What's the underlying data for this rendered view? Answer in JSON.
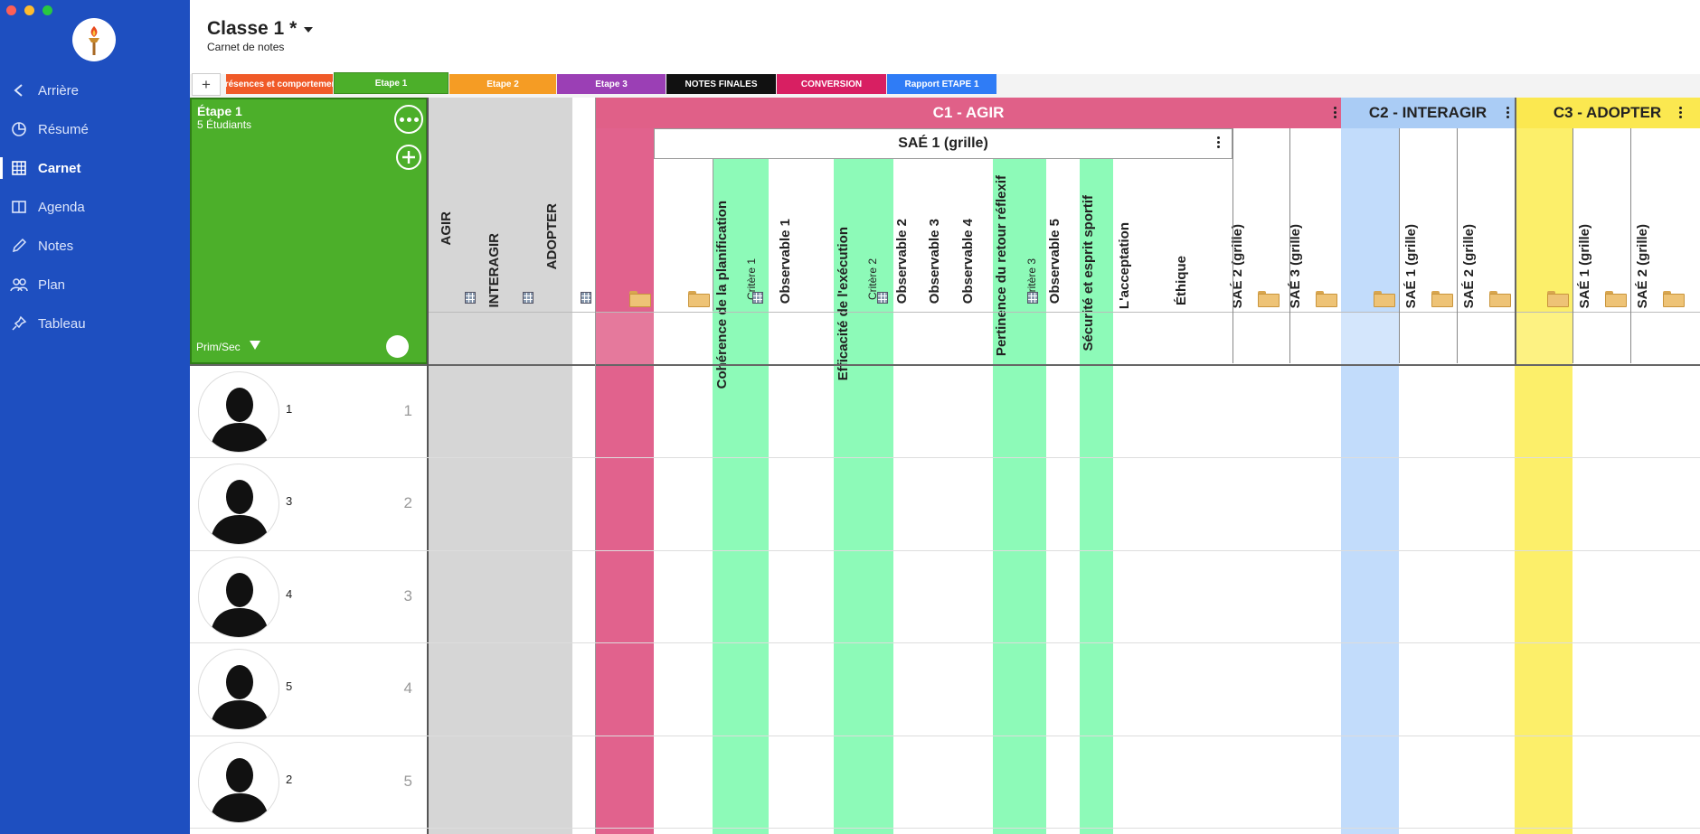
{
  "sidebar": {
    "items": [
      {
        "label": "Arrière",
        "icon": "chevron-left-icon"
      },
      {
        "label": "Résumé",
        "icon": "pie-chart-icon"
      },
      {
        "label": "Carnet",
        "icon": "grid-icon"
      },
      {
        "label": "Agenda",
        "icon": "book-icon"
      },
      {
        "label": "Notes",
        "icon": "pencil-icon"
      },
      {
        "label": "Plan",
        "icon": "people-icon"
      },
      {
        "label": "Tableau",
        "icon": "pin-icon"
      }
    ],
    "active": "Carnet"
  },
  "header": {
    "title": "Classe 1 *",
    "subtitle": "Carnet de notes",
    "add_label": "+"
  },
  "tabs": [
    {
      "label": "Présences et comportement",
      "color": "#f05a28"
    },
    {
      "label": "Etape 1",
      "color": "#4caf2a"
    },
    {
      "label": "Etape 2",
      "color": "#f59c24"
    },
    {
      "label": "Etape 3",
      "color": "#9b3fb5"
    },
    {
      "label": "NOTES FINALES",
      "color": "#111111"
    },
    {
      "label": "CONVERSION",
      "color": "#d81f62"
    },
    {
      "label": "Rapport ETAPE 1",
      "color": "#2f7cf6"
    }
  ],
  "stage": {
    "title": "Étape 1",
    "count": "5 Étudiants",
    "filter": "Prim/Sec",
    "color": "#4caf2a"
  },
  "summary_columns": [
    "AGIR",
    "INTERAGIR",
    "ADOPTER"
  ],
  "competencies": [
    {
      "label": "C1 - AGIR",
      "color": "#e06088"
    },
    {
      "label": "C2 - INTERAGIR",
      "color": "#aaccf5"
    },
    {
      "label": "C3 - ADOPTER",
      "color": "#fbe850"
    }
  ],
  "sae1": {
    "label": "SAÉ 1 (grille)",
    "columns": [
      {
        "label": "Cohérence de la planification",
        "sub": "Critère 1"
      },
      {
        "label": "Observable 1"
      },
      {
        "label": "Efficacité de l'exécution",
        "sub": "Critère 2"
      },
      {
        "label": "Observable 2"
      },
      {
        "label": "Observable 3"
      },
      {
        "label": "Observable 4"
      },
      {
        "label": "Pertinence du retour réflexif",
        "sub": "Critère 3"
      },
      {
        "label": "Observable 5"
      },
      {
        "label": "Sécurité et esprit sportif"
      },
      {
        "label": "L'acceptation"
      },
      {
        "label": "Éthique"
      }
    ]
  },
  "c1_extra": [
    "SAÉ 2 (grille)",
    "SAÉ 3 (grille)"
  ],
  "c2_cols": [
    "SAÉ 1 (grille)",
    "SAÉ 2 (grille)"
  ],
  "c3_cols": [
    "SAÉ 1 (grille)",
    "SAÉ 2 (grille)"
  ],
  "students": [
    {
      "name": "1",
      "num": "1"
    },
    {
      "name": "3",
      "num": "2"
    },
    {
      "name": "4",
      "num": "3"
    },
    {
      "name": "5",
      "num": "4"
    },
    {
      "name": "2",
      "num": "5"
    }
  ]
}
